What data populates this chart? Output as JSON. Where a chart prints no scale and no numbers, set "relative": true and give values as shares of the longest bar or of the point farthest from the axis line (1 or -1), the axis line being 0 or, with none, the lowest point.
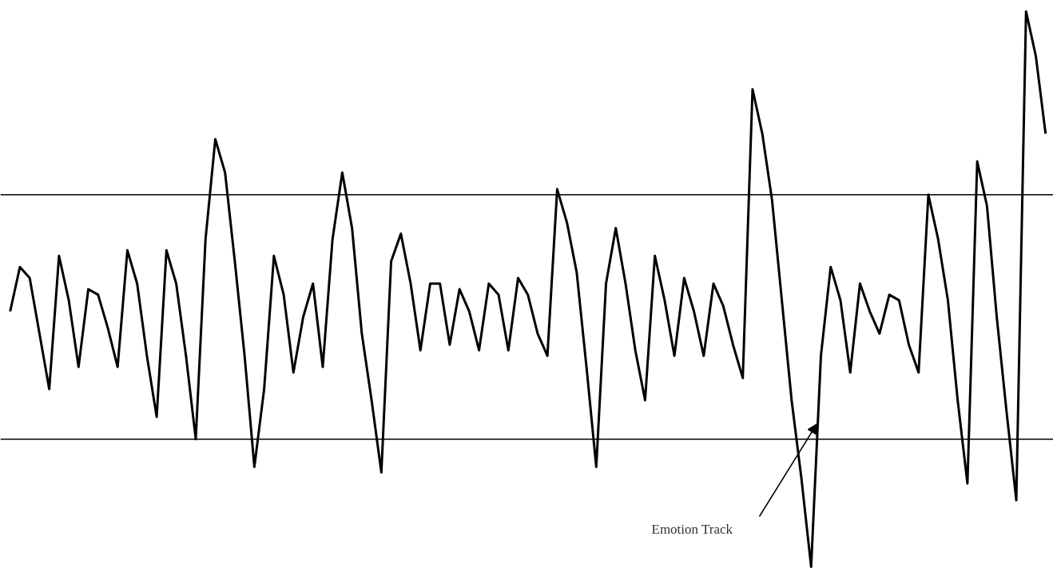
{
  "chart_data": {
    "type": "line",
    "relative": true,
    "categories": [
      null,
      null,
      null,
      null,
      null,
      null,
      null,
      null,
      null,
      null,
      null,
      null,
      null,
      null,
      null,
      null,
      null,
      null,
      null,
      null,
      null,
      null,
      null,
      null,
      null,
      null,
      null,
      null,
      null,
      null,
      null,
      null,
      null,
      null,
      null,
      null,
      null,
      null,
      null,
      null,
      null,
      null,
      null,
      null,
      null,
      null,
      null,
      null,
      null,
      null,
      null,
      null,
      null,
      null,
      null,
      null,
      null,
      null,
      null,
      null,
      null,
      null,
      null,
      null,
      null,
      null,
      null,
      null,
      null,
      null,
      null,
      null,
      null,
      null,
      null,
      null,
      null,
      null,
      null,
      null,
      null,
      null,
      null,
      null,
      null,
      null,
      null,
      null,
      null,
      null,
      null,
      null,
      null,
      null,
      null,
      null,
      null,
      null,
      null,
      null,
      null,
      null,
      null,
      null,
      null,
      null,
      null
    ],
    "series": [
      {
        "color": "#000000",
        "values": [
          0.46,
          0.54,
          0.52,
          0.42,
          0.32,
          0.56,
          0.48,
          0.36,
          0.5,
          0.49,
          0.43,
          0.36,
          0.57,
          0.51,
          0.38,
          0.27,
          0.57,
          0.51,
          0.38,
          0.23,
          0.59,
          0.77,
          0.71,
          0.55,
          0.38,
          0.18,
          0.32,
          0.56,
          0.49,
          0.35,
          0.45,
          0.51,
          0.36,
          0.59,
          0.71,
          0.61,
          0.42,
          0.3,
          0.17,
          0.55,
          0.6,
          0.51,
          0.39,
          0.51,
          0.51,
          0.4,
          0.5,
          0.46,
          0.39,
          0.51,
          0.49,
          0.39,
          0.52,
          0.49,
          0.42,
          0.38,
          0.68,
          0.62,
          0.53,
          0.36,
          0.18,
          0.51,
          0.61,
          0.51,
          0.39,
          0.3,
          0.56,
          0.48,
          0.38,
          0.52,
          0.46,
          0.38,
          0.51,
          0.47,
          0.4,
          0.34,
          0.86,
          0.78,
          0.66,
          0.48,
          0.3,
          0.16,
          0.0,
          0.38,
          0.54,
          0.48,
          0.35,
          0.51,
          0.46,
          0.42,
          0.49,
          0.48,
          0.4,
          0.35,
          0.67,
          0.59,
          0.48,
          0.3,
          0.15,
          0.73,
          0.65,
          0.45,
          0.28,
          0.12,
          1.0,
          0.92,
          0.78
        ]
      }
    ],
    "ref_lines": [
      {
        "axis": "y",
        "value": 0.67,
        "color": "#000000"
      },
      {
        "axis": "y",
        "value": 0.23,
        "color": "#000000"
      }
    ],
    "annotations": [
      "Emotion Track"
    ]
  }
}
